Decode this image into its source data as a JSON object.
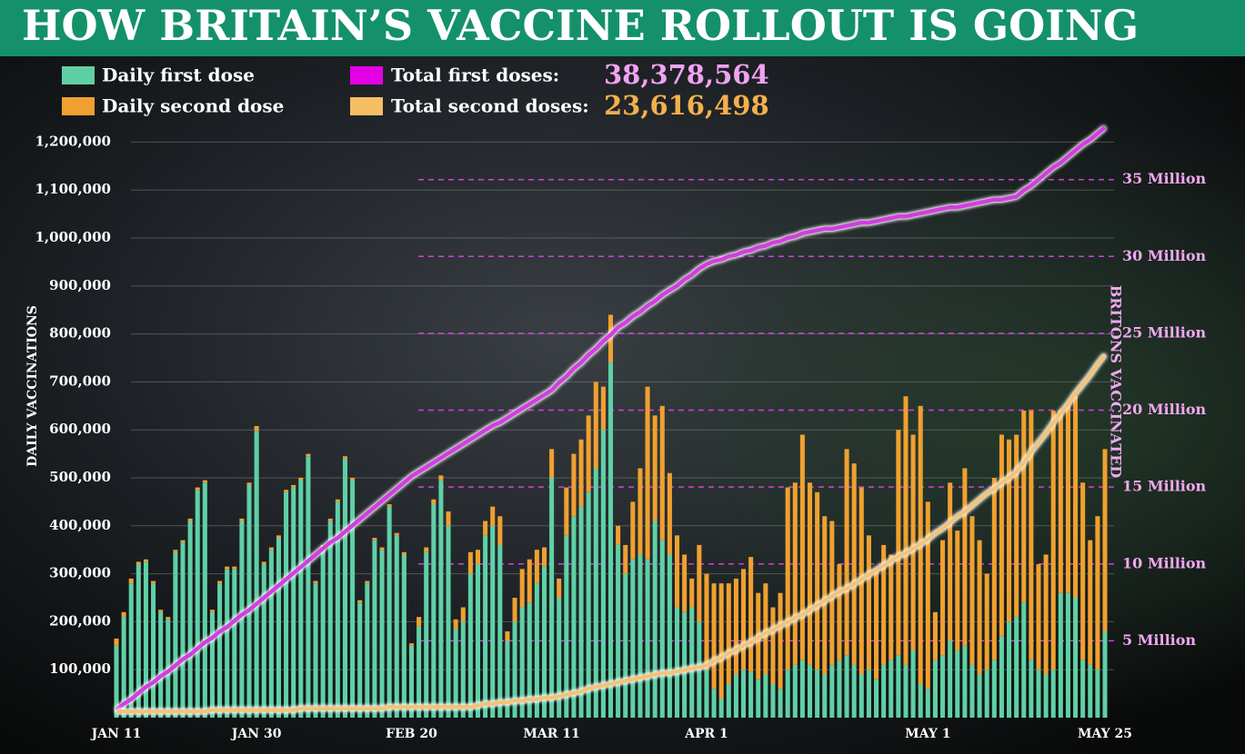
{
  "chart_data": {
    "type": "bar",
    "title": "HOW BRITAIN’S VACCINE ROLLOUT IS GOING",
    "y_label": "DAILY VACCINATIONS",
    "y2_label": "BRITONS VACCINATED",
    "categories": [
      "JAN 11",
      null,
      null,
      null,
      null,
      null,
      null,
      null,
      null,
      null,
      null,
      null,
      null,
      null,
      null,
      null,
      null,
      null,
      null,
      "JAN 30",
      null,
      null,
      null,
      null,
      null,
      null,
      null,
      null,
      null,
      null,
      null,
      null,
      null,
      null,
      null,
      null,
      null,
      null,
      null,
      null,
      "FEB 20",
      null,
      null,
      null,
      null,
      null,
      null,
      null,
      null,
      null,
      null,
      null,
      null,
      null,
      null,
      null,
      null,
      null,
      null,
      "MAR 11",
      null,
      null,
      null,
      null,
      null,
      null,
      null,
      null,
      null,
      null,
      null,
      null,
      null,
      null,
      null,
      null,
      null,
      null,
      null,
      null,
      "APR 1",
      null,
      null,
      null,
      null,
      null,
      null,
      null,
      null,
      null,
      null,
      null,
      null,
      null,
      null,
      null,
      null,
      null,
      null,
      null,
      null,
      null,
      null,
      null,
      null,
      null,
      null,
      null,
      null,
      null,
      "MAY 1",
      null,
      null,
      null,
      null,
      null,
      null,
      null,
      null,
      null,
      null,
      null,
      null,
      null,
      null,
      null,
      null,
      null,
      null,
      null,
      null,
      null,
      null,
      null,
      "MAY 25"
    ],
    "ylim": [
      0,
      1250000
    ],
    "yticks": [
      {
        "value": 100000,
        "label": "100,000"
      },
      {
        "value": 200000,
        "label": "200,000"
      },
      {
        "value": 300000,
        "label": "300,000"
      },
      {
        "value": 400000,
        "label": "400,000"
      },
      {
        "value": 500000,
        "label": "500,000"
      },
      {
        "value": 600000,
        "label": "600,000"
      },
      {
        "value": 700000,
        "label": "700,000"
      },
      {
        "value": 800000,
        "label": "800,000"
      },
      {
        "value": 900000,
        "label": "900,000"
      },
      {
        "value": 1000000,
        "label": "1,000,000"
      },
      {
        "value": 1100000,
        "label": "1,100,000"
      },
      {
        "value": 1200000,
        "label": "1,200,000"
      }
    ],
    "y2lim": [
      0,
      39
    ],
    "y2ticks": [
      {
        "value": 5,
        "label": "5 Million"
      },
      {
        "value": 10,
        "label": "10 Million"
      },
      {
        "value": 15,
        "label": "15 Million"
      },
      {
        "value": 20,
        "label": "20 Million"
      },
      {
        "value": 25,
        "label": "25 Million"
      },
      {
        "value": 30,
        "label": "30 Million"
      },
      {
        "value": 35,
        "label": "35 Million"
      }
    ],
    "grid": true,
    "series": [
      {
        "name": "Daily first dose",
        "type": "bar",
        "color": "#5fd0a6",
        "values": [
          150000,
          210000,
          280000,
          320000,
          325000,
          280000,
          220000,
          205000,
          345000,
          365000,
          410000,
          475000,
          490000,
          220000,
          280000,
          310000,
          310000,
          410000,
          485000,
          598000,
          320000,
          350000,
          375000,
          470000,
          480000,
          495000,
          545000,
          280000,
          355000,
          410000,
          450000,
          540000,
          495000,
          240000,
          280000,
          370000,
          350000,
          440000,
          380000,
          340000,
          150000,
          190000,
          345000,
          445000,
          495000,
          400000,
          185000,
          200000,
          300000,
          320000,
          380000,
          400000,
          360000,
          160000,
          200000,
          230000,
          240000,
          280000,
          315000,
          500000,
          250000,
          380000,
          420000,
          440000,
          470000,
          520000,
          600000,
          740000,
          360000,
          300000,
          330000,
          340000,
          330000,
          410000,
          370000,
          340000,
          230000,
          220000,
          230000,
          200000,
          100000,
          60000,
          40000,
          70000,
          90000,
          100000,
          95000,
          80000,
          90000,
          70000,
          60000,
          100000,
          110000,
          120000,
          110000,
          100000,
          90000,
          110000,
          120000,
          130000,
          110000,
          90000,
          100000,
          80000,
          110000,
          120000,
          130000,
          110000,
          140000,
          70000,
          60000,
          120000,
          130000,
          160000,
          140000,
          150000,
          110000,
          90000,
          100000,
          120000,
          170000,
          200000,
          210000,
          240000,
          120000,
          100000,
          90000,
          100000,
          260000,
          260000,
          250000,
          120000,
          110000,
          100000,
          180000
        ]
      },
      {
        "name": "Daily second dose",
        "type": "bar",
        "color": "#f0a030",
        "values": [
          15000,
          10000,
          10000,
          5000,
          5000,
          5000,
          5000,
          5000,
          5000,
          5000,
          5000,
          5000,
          5000,
          5000,
          5000,
          5000,
          5000,
          5000,
          5000,
          10000,
          5000,
          5000,
          5000,
          5000,
          5000,
          5000,
          5000,
          5000,
          5000,
          5000,
          5000,
          5000,
          5000,
          5000,
          5000,
          5000,
          5000,
          5000,
          5000,
          5000,
          5000,
          20000,
          10000,
          10000,
          10000,
          30000,
          20000,
          30000,
          45000,
          30000,
          30000,
          40000,
          60000,
          20000,
          50000,
          80000,
          90000,
          70000,
          40000,
          60000,
          40000,
          100000,
          130000,
          140000,
          160000,
          180000,
          90000,
          100000,
          40000,
          60000,
          120000,
          180000,
          360000,
          220000,
          280000,
          170000,
          150000,
          120000,
          60000,
          160000,
          200000,
          220000,
          240000,
          210000,
          200000,
          210000,
          240000,
          180000,
          190000,
          160000,
          200000,
          380000,
          380000,
          470000,
          380000,
          370000,
          330000,
          300000,
          200000,
          430000,
          420000,
          390000,
          280000,
          230000,
          250000,
          220000,
          470000,
          560000,
          450000,
          580000,
          390000,
          100000,
          240000,
          330000,
          250000,
          370000,
          310000,
          280000,
          200000,
          380000,
          420000,
          380000,
          380000,
          400000,
          520000,
          220000,
          250000,
          540000,
          380000,
          390000,
          420000,
          370000,
          260000,
          320000,
          380000
        ]
      },
      {
        "name": "Total first doses:",
        "type": "line",
        "axis": "y2",
        "color": "#d23ee0",
        "legend_color": "#e400e4",
        "total": "38,378,564",
        "total_color": "#f2a2f2",
        "values": [
          0.5,
          0.9,
          1.2,
          1.6,
          2.0,
          2.3,
          2.7,
          3.0,
          3.4,
          3.8,
          4.1,
          4.5,
          4.9,
          5.2,
          5.6,
          5.9,
          6.3,
          6.7,
          7.0,
          7.4,
          7.8,
          8.2,
          8.6,
          9.0,
          9.4,
          9.8,
          10.2,
          10.6,
          11.0,
          11.4,
          11.7,
          12.1,
          12.5,
          12.9,
          13.3,
          13.7,
          14.1,
          14.5,
          14.9,
          15.3,
          15.7,
          16.0,
          16.3,
          16.6,
          16.9,
          17.2,
          17.5,
          17.8,
          18.1,
          18.4,
          18.7,
          19.0,
          19.2,
          19.5,
          19.8,
          20.1,
          20.4,
          20.7,
          21.0,
          21.3,
          21.8,
          22.2,
          22.7,
          23.1,
          23.6,
          24.0,
          24.5,
          24.9,
          25.4,
          25.7,
          26.1,
          26.4,
          26.8,
          27.1,
          27.5,
          27.8,
          28.1,
          28.5,
          28.8,
          29.2,
          29.5,
          29.7,
          29.8,
          30.0,
          30.1,
          30.3,
          30.4,
          30.6,
          30.7,
          30.9,
          31.0,
          31.2,
          31.3,
          31.5,
          31.6,
          31.7,
          31.8,
          31.8,
          31.9,
          32.0,
          32.1,
          32.2,
          32.2,
          32.3,
          32.4,
          32.5,
          32.6,
          32.6,
          32.7,
          32.8,
          32.9,
          33.0,
          33.1,
          33.2,
          33.2,
          33.3,
          33.4,
          33.5,
          33.6,
          33.7,
          33.7,
          33.8,
          33.9,
          34.3,
          34.6,
          35.0,
          35.4,
          35.8,
          36.1,
          36.5,
          36.9,
          37.3,
          37.6,
          38.0,
          38.4
        ]
      },
      {
        "name": "Total second doses:",
        "type": "line",
        "axis": "y2",
        "color": "#f3c478",
        "legend_color": "#f5bf62",
        "total": "23,616,498",
        "total_color": "#f4b04c",
        "values": [
          0.4,
          0.4,
          0.4,
          0.4,
          0.4,
          0.4,
          0.4,
          0.4,
          0.4,
          0.4,
          0.4,
          0.4,
          0.4,
          0.5,
          0.5,
          0.5,
          0.5,
          0.5,
          0.5,
          0.5,
          0.5,
          0.5,
          0.5,
          0.5,
          0.5,
          0.6,
          0.6,
          0.6,
          0.6,
          0.6,
          0.6,
          0.6,
          0.6,
          0.6,
          0.6,
          0.6,
          0.6,
          0.7,
          0.7,
          0.7,
          0.7,
          0.7,
          0.7,
          0.7,
          0.7,
          0.7,
          0.7,
          0.7,
          0.7,
          0.8,
          0.9,
          0.9,
          1.0,
          1.0,
          1.1,
          1.1,
          1.2,
          1.2,
          1.3,
          1.3,
          1.4,
          1.5,
          1.6,
          1.7,
          1.9,
          2.0,
          2.1,
          2.2,
          2.3,
          2.4,
          2.5,
          2.6,
          2.7,
          2.8,
          2.9,
          2.9,
          3.0,
          3.1,
          3.2,
          3.3,
          3.4,
          3.7,
          3.9,
          4.2,
          4.4,
          4.7,
          4.9,
          5.2,
          5.5,
          5.7,
          6.0,
          6.2,
          6.5,
          6.7,
          7.0,
          7.3,
          7.6,
          7.9,
          8.2,
          8.4,
          8.7,
          9.0,
          9.3,
          9.6,
          9.9,
          10.2,
          10.5,
          10.7,
          11.0,
          11.3,
          11.6,
          12.0,
          12.3,
          12.7,
          13.1,
          13.4,
          13.8,
          14.2,
          14.6,
          14.9,
          15.3,
          15.6,
          16.0,
          16.6,
          17.3,
          17.9,
          18.5,
          19.2,
          19.8,
          20.4,
          21.1,
          21.7,
          22.3,
          23.0,
          23.6
        ]
      }
    ]
  }
}
